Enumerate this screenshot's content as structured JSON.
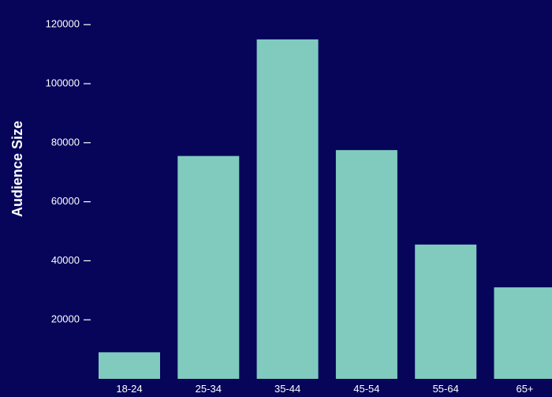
{
  "chart_data": {
    "type": "bar",
    "title": "",
    "xlabel": "",
    "ylabel": "Audience Size",
    "categories": [
      "18-24",
      "25-34",
      "35-44",
      "45-54",
      "55-64",
      "65+"
    ],
    "values": [
      9000,
      75500,
      115000,
      77500,
      45500,
      31000
    ],
    "ylim": [
      0,
      123000
    ],
    "yticks": [
      20000,
      40000,
      60000,
      80000,
      100000,
      120000
    ],
    "grid": false,
    "colors": {
      "background": "#06055a",
      "bar": "#80cbbe",
      "text": "#ffffff"
    }
  }
}
